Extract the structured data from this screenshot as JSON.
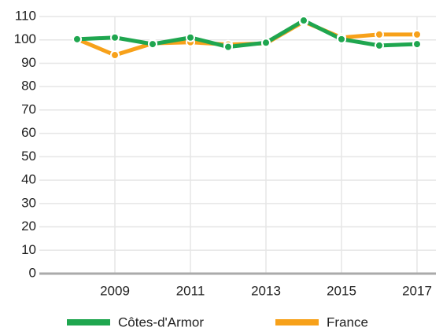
{
  "chart_data": {
    "type": "line",
    "x": [
      2008,
      2009,
      2010,
      2011,
      2012,
      2013,
      2014,
      2015,
      2016,
      2017
    ],
    "series": [
      {
        "name": "Côtes-d'Armor",
        "color": "#1fa64f",
        "values": [
          100.3,
          101,
          98.2,
          101,
          97,
          98.8,
          108.3,
          100.3,
          97.6,
          98.2
        ]
      },
      {
        "name": "France",
        "color": "#f7a11a",
        "values": [
          100.3,
          93.5,
          98.5,
          99,
          98,
          98.5,
          107.8,
          101,
          102.3,
          102.3
        ]
      }
    ],
    "xlim": [
      2007,
      2017.5
    ],
    "xticks": [
      2009,
      2011,
      2013,
      2015,
      2017
    ],
    "ylim": [
      0,
      110
    ],
    "yticks": [
      0,
      10,
      20,
      30,
      40,
      50,
      60,
      70,
      80,
      90,
      100,
      110
    ],
    "grid": true,
    "legend": "bottom"
  }
}
